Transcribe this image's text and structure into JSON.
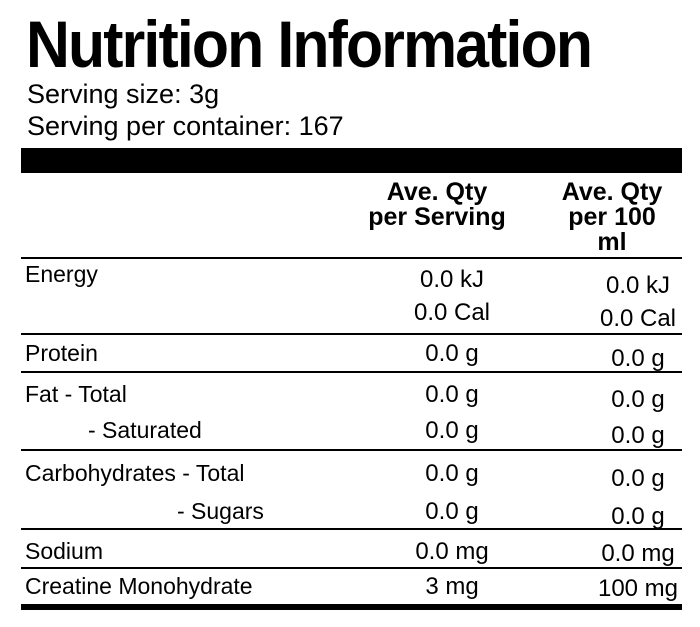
{
  "title": "Nutrition Information",
  "serving_info": {
    "serving_size": "Serving size: 3g",
    "servings_per_container": "Serving per container: 167"
  },
  "table": {
    "columns": {
      "per_serving": {
        "line1": "Ave. Qty",
        "line2": "per Serving"
      },
      "per_100ml": {
        "line1": "Ave. Qty",
        "line2": "per 100 ml"
      }
    },
    "rows": [
      {
        "label": "Energy",
        "per_serving": "0.0 kJ",
        "per_100ml": "0.0 kJ"
      },
      {
        "label": "",
        "per_serving": "0.0 Cal",
        "per_100ml": "0.0 Cal"
      },
      {
        "label": "Protein",
        "per_serving": "0.0 g",
        "per_100ml": "0.0 g"
      },
      {
        "label": "Fat - Total",
        "per_serving": "0.0 g",
        "per_100ml": "0.0 g"
      },
      {
        "label": "- Saturated",
        "per_serving": "0.0 g",
        "per_100ml": "0.0 g"
      },
      {
        "label": "Carbohydrates - Total",
        "per_serving": "0.0 g",
        "per_100ml": "0.0 g"
      },
      {
        "label": "- Sugars",
        "per_serving": "0.0 g",
        "per_100ml": "0.0 g"
      },
      {
        "label": "Sodium",
        "per_serving": "0.0 mg",
        "per_100ml": "0.0 mg"
      },
      {
        "label": "Creatine Monohydrate",
        "per_serving": "3 mg",
        "per_100ml": "100 mg"
      }
    ]
  },
  "colors": {
    "text": "#000000",
    "background": "#ffffff",
    "rule": "#000000"
  }
}
